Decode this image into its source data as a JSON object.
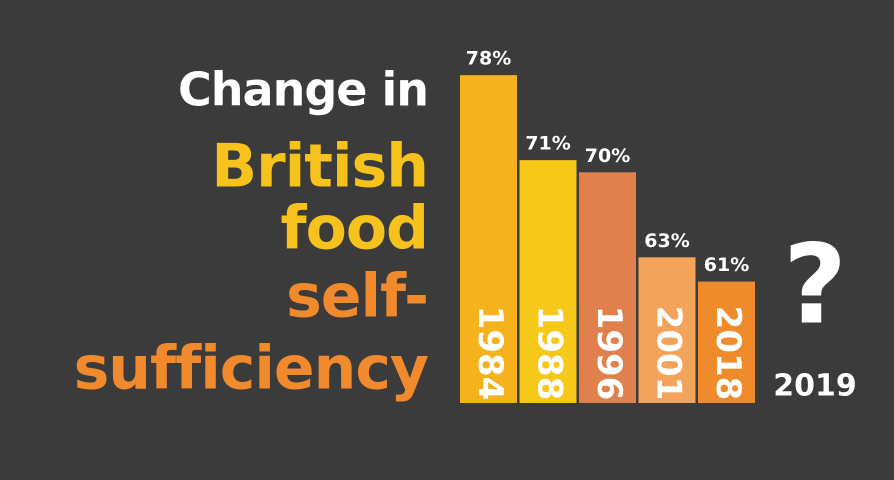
{
  "chart_data": {
    "type": "bar",
    "title_lines": [
      {
        "text": "Change in",
        "color": "#ffffff"
      },
      {
        "text": "British",
        "color": "#f7c21b"
      },
      {
        "text": "food",
        "color": "#f7c21b"
      },
      {
        "text": "self-",
        "color": "#f08a2c"
      },
      {
        "text": "sufficiency",
        "color": "#f08a2c"
      }
    ],
    "categories": [
      "1984",
      "1988",
      "1996",
      "2001",
      "2018",
      "2019"
    ],
    "values": [
      78,
      71,
      70,
      63,
      61,
      null
    ],
    "value_labels": [
      "78%",
      "71%",
      "70%",
      "63%",
      "61%",
      null
    ],
    "colors": [
      "#f5b21c",
      "#f6c81a",
      "#e0804d",
      "#f4a35a",
      "#ef8b2b",
      null
    ],
    "annotation": "?",
    "ylim": [
      51,
      79
    ]
  }
}
